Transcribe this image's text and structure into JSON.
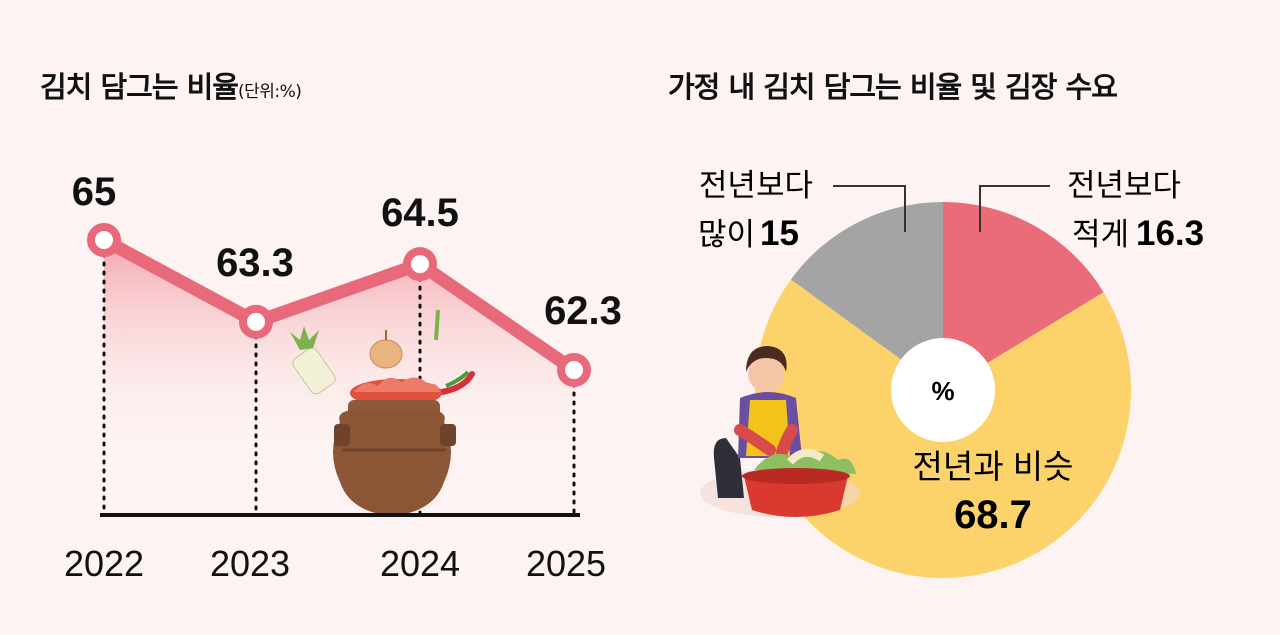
{
  "chart_data": [
    {
      "type": "line",
      "title": "김치 담그는 비율",
      "unit": "(단위:%)",
      "categories": [
        "2022",
        "2023",
        "2024",
        "2025"
      ],
      "values": [
        65,
        63.3,
        64.5,
        62.3
      ],
      "value_labels": [
        "65",
        "63.3",
        "64.5",
        "62.3"
      ],
      "colors": {
        "line": "#e8697a",
        "marker_fill": "#ffffff",
        "area": "#f4a3aa"
      }
    },
    {
      "type": "pie",
      "title": "가정 내 김치 담그는 비율 및 김장 수요",
      "center_label": "%",
      "slices": [
        {
          "label_line1": "전년보다",
          "label_line2": "적게",
          "value": 16.3,
          "value_label": "16.3",
          "color": "#ea6c79"
        },
        {
          "label_line1": "전년과 비슷",
          "label_line2": "",
          "value": 68.7,
          "value_label": "68.7",
          "color": "#fcd36a"
        },
        {
          "label_line1": "전년보다",
          "label_line2": "많이",
          "value": 15,
          "value_label": "15",
          "color": "#a4a4a4"
        }
      ]
    }
  ]
}
